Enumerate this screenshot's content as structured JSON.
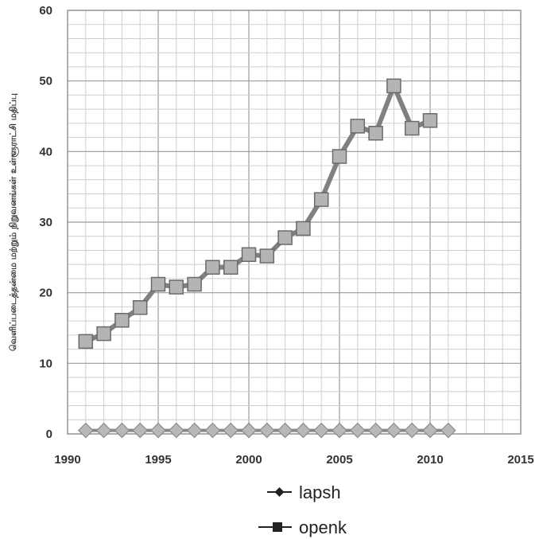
{
  "chart_data": {
    "type": "line",
    "title": "",
    "xlabel": "",
    "ylabel": "வெளிப்படைத்தன்மை மற்றும் நிறுவனங்கள் உள்ளூராட்சி மதிப்பு",
    "xlim": [
      1990,
      2015
    ],
    "ylim": [
      0,
      60
    ],
    "x_ticks": [
      "1990",
      "1995",
      "2000",
      "2005",
      "2010",
      "2015"
    ],
    "y_ticks": [
      "0",
      "10",
      "20",
      "30",
      "40",
      "50",
      "60"
    ],
    "grid": true,
    "legend_position": "bottom",
    "series": [
      {
        "name": "lapsh",
        "marker": "diamond",
        "color": "#888888",
        "x": [
          1991,
          1992,
          1993,
          1994,
          1995,
          1996,
          1997,
          1998,
          1999,
          2000,
          2001,
          2002,
          2003,
          2004,
          2005,
          2006,
          2007,
          2008,
          2009,
          2010,
          2011
        ],
        "values": [
          0.5,
          0.5,
          0.5,
          0.5,
          0.5,
          0.5,
          0.5,
          0.5,
          0.5,
          0.5,
          0.5,
          0.5,
          0.5,
          0.5,
          0.5,
          0.5,
          0.5,
          0.5,
          0.5,
          0.5,
          0.5
        ]
      },
      {
        "name": "openk",
        "marker": "square",
        "color": "#808080",
        "x": [
          1991,
          1992,
          1993,
          1994,
          1995,
          1996,
          1997,
          1998,
          1999,
          2000,
          2001,
          2002,
          2003,
          2004,
          2005,
          2006,
          2007,
          2008,
          2009,
          2010
        ],
        "values": [
          13.1,
          14.2,
          16.1,
          17.9,
          21.2,
          20.8,
          21.2,
          23.6,
          23.6,
          25.4,
          25.2,
          27.8,
          29.1,
          33.2,
          39.3,
          43.6,
          42.6,
          49.3,
          43.3,
          44.4
        ]
      }
    ]
  }
}
